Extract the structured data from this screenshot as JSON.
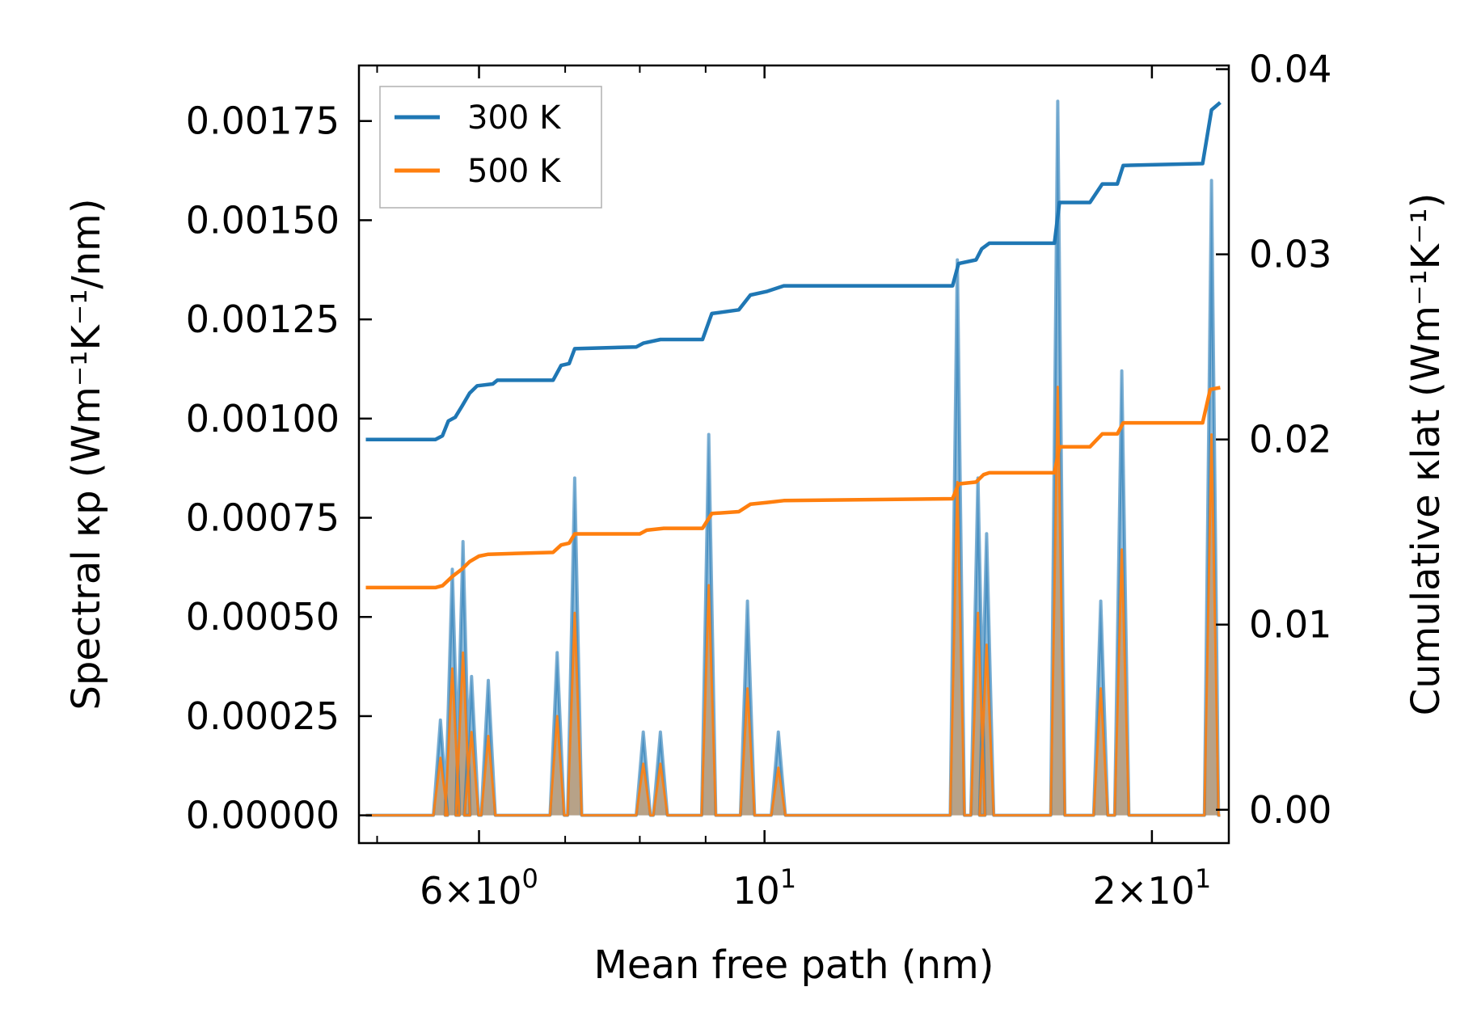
{
  "chart_data": {
    "type": "line",
    "xscale": "log",
    "xlim": [
      4.84,
      22.95
    ],
    "xlabel": "Mean free path (nm)",
    "ylabel_left": "Spectral κp (Wm⁻¹K⁻¹/nm)",
    "ylabel_right": "Cumulative κlat (Wm⁻¹K⁻¹)",
    "ylim_left": [
      -7e-05,
      0.00189
    ],
    "ylim_right": [
      -0.0018,
      0.0402
    ],
    "x_ticks": [
      {
        "value": 6,
        "label_base": "6×10",
        "label_exp": "0"
      },
      {
        "value": 10,
        "label_base": "10",
        "label_exp": "1"
      },
      {
        "value": 20,
        "label_base": "2×10",
        "label_exp": "1"
      }
    ],
    "y_left_ticks": [
      "0.00000",
      "0.00025",
      "0.00050",
      "0.00075",
      "0.00100",
      "0.00125",
      "0.00150",
      "0.00175"
    ],
    "y_right_ticks": [
      "0.00",
      "0.01",
      "0.02",
      "0.03",
      "0.04"
    ],
    "colors": {
      "series_300": "#1f77b4",
      "series_500": "#ff7f0e",
      "fill_300": "#1f77b4",
      "fill_500": "#c49a6c"
    },
    "legend": [
      {
        "label": "300 K",
        "color": "#1f77b4"
      },
      {
        "label": "500 K",
        "color": "#ff7f0e"
      }
    ],
    "spectral_peaks": [
      {
        "x": 5.6,
        "k300": 0.00024,
        "k500": 0.000145
      },
      {
        "x": 5.72,
        "k300": 0.00062,
        "k500": 0.00037
      },
      {
        "x": 5.83,
        "k300": 0.00069,
        "k500": 0.00041
      },
      {
        "x": 5.92,
        "k300": 0.00035,
        "k500": 0.00021
      },
      {
        "x": 6.1,
        "k300": 0.00034,
        "k500": 0.0002
      },
      {
        "x": 6.9,
        "k300": 0.00041,
        "k500": 0.00025
      },
      {
        "x": 7.12,
        "k300": 0.00085,
        "k500": 0.00051
      },
      {
        "x": 8.05,
        "k300": 0.00021,
        "k500": 0.00013
      },
      {
        "x": 8.3,
        "k300": 0.00021,
        "k500": 0.00013
      },
      {
        "x": 9.05,
        "k300": 0.00096,
        "k500": 0.00058
      },
      {
        "x": 9.7,
        "k300": 0.00054,
        "k500": 0.00032
      },
      {
        "x": 10.25,
        "k300": 0.00021,
        "k500": 0.00012
      },
      {
        "x": 14.12,
        "k300": 0.0014,
        "k500": 0.00084
      },
      {
        "x": 14.65,
        "k300": 0.00085,
        "k500": 0.00051
      },
      {
        "x": 14.88,
        "k300": 0.00071,
        "k500": 0.00043
      },
      {
        "x": 16.9,
        "k300": 0.0018,
        "k500": 0.00108
      },
      {
        "x": 18.25,
        "k300": 0.00054,
        "k500": 0.00032
      },
      {
        "x": 18.95,
        "k300": 0.00112,
        "k500": 0.00067
      },
      {
        "x": 22.25,
        "k300": 0.0016,
        "k500": 0.00096
      }
    ],
    "series": [
      {
        "name": "300 K",
        "cumulative": [
          [
            4.9,
            0.02
          ],
          [
            5.55,
            0.02
          ],
          [
            5.62,
            0.0202
          ],
          [
            5.68,
            0.021
          ],
          [
            5.75,
            0.0212
          ],
          [
            5.82,
            0.0218
          ],
          [
            5.9,
            0.0225
          ],
          [
            5.98,
            0.0229
          ],
          [
            6.15,
            0.023
          ],
          [
            6.2,
            0.0232
          ],
          [
            6.85,
            0.0232
          ],
          [
            6.95,
            0.024
          ],
          [
            7.05,
            0.0241
          ],
          [
            7.12,
            0.0249
          ],
          [
            7.95,
            0.025
          ],
          [
            8.05,
            0.0252
          ],
          [
            8.3,
            0.0254
          ],
          [
            8.95,
            0.0254
          ],
          [
            9.1,
            0.0268
          ],
          [
            9.55,
            0.027
          ],
          [
            9.75,
            0.0278
          ],
          [
            10.05,
            0.028
          ],
          [
            10.35,
            0.0283
          ],
          [
            14.0,
            0.0283
          ],
          [
            14.15,
            0.0295
          ],
          [
            14.6,
            0.0297
          ],
          [
            14.75,
            0.0303
          ],
          [
            14.95,
            0.0306
          ],
          [
            16.8,
            0.0306
          ],
          [
            16.95,
            0.0328
          ],
          [
            17.9,
            0.0328
          ],
          [
            18.3,
            0.0338
          ],
          [
            18.8,
            0.0338
          ],
          [
            19.0,
            0.0348
          ],
          [
            21.9,
            0.0349
          ],
          [
            22.25,
            0.0378
          ],
          [
            22.6,
            0.0382
          ]
        ]
      },
      {
        "name": "500 K",
        "cumulative": [
          [
            4.9,
            0.012
          ],
          [
            5.55,
            0.012
          ],
          [
            5.62,
            0.0121
          ],
          [
            5.72,
            0.0126
          ],
          [
            5.82,
            0.013
          ],
          [
            5.9,
            0.0134
          ],
          [
            6.0,
            0.0137
          ],
          [
            6.1,
            0.0138
          ],
          [
            6.85,
            0.0139
          ],
          [
            6.95,
            0.0143
          ],
          [
            7.05,
            0.0144
          ],
          [
            7.12,
            0.0149
          ],
          [
            8.0,
            0.0149
          ],
          [
            8.1,
            0.0151
          ],
          [
            8.35,
            0.0152
          ],
          [
            8.95,
            0.0152
          ],
          [
            9.1,
            0.016
          ],
          [
            9.55,
            0.0161
          ],
          [
            9.75,
            0.0165
          ],
          [
            10.05,
            0.0166
          ],
          [
            10.35,
            0.0167
          ],
          [
            14.0,
            0.0168
          ],
          [
            14.15,
            0.0176
          ],
          [
            14.6,
            0.0177
          ],
          [
            14.8,
            0.0181
          ],
          [
            14.95,
            0.0182
          ],
          [
            16.8,
            0.0182
          ],
          [
            16.95,
            0.0196
          ],
          [
            17.9,
            0.0196
          ],
          [
            18.3,
            0.0203
          ],
          [
            18.8,
            0.0203
          ],
          [
            19.0,
            0.0209
          ],
          [
            21.9,
            0.0209
          ],
          [
            22.2,
            0.0227
          ],
          [
            22.6,
            0.0228
          ]
        ]
      }
    ]
  }
}
